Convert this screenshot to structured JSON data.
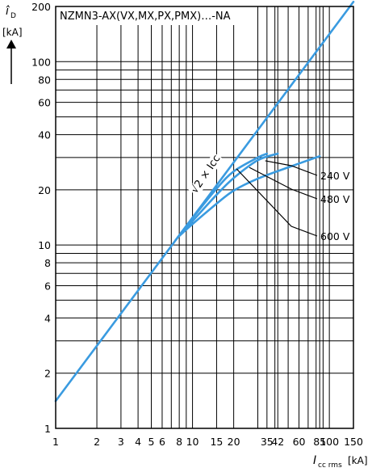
{
  "chart_data": {
    "type": "line",
    "title": "NZMN3-AX(VX,MX,PX,PMX)…-NA",
    "ylabel": {
      "symbol": "î",
      "sub": "D",
      "unit": "[kA]"
    },
    "xlabel": {
      "symbol": "I",
      "sub": "cc rms",
      "unit": "[kA]"
    },
    "xscale": "log",
    "yscale": "log",
    "xlim": [
      1,
      150
    ],
    "ylim": [
      1,
      200
    ],
    "grid": true,
    "x_ticks": [
      1,
      2,
      3,
      4,
      5,
      6,
      8,
      10,
      15,
      20,
      35,
      42,
      60,
      85,
      100,
      150
    ],
    "x_tick_labels": [
      "1",
      "2",
      "3",
      "4",
      "5",
      "6",
      "8",
      "10",
      "15",
      "20",
      "35",
      "42",
      "60",
      "85",
      "100",
      "150"
    ],
    "y_ticks": [
      1,
      2,
      4,
      6,
      8,
      10,
      20,
      40,
      60,
      80,
      100,
      200
    ],
    "y_tick_labels": [
      "1",
      "2",
      "4",
      "6",
      "8",
      "10",
      "20",
      "40",
      "60",
      "80",
      "100",
      "200"
    ],
    "x_grid": [
      1,
      2,
      3,
      4,
      5,
      6,
      7,
      8,
      9,
      10,
      15,
      20,
      30,
      35,
      40,
      42,
      50,
      60,
      70,
      80,
      85,
      90,
      100,
      150
    ],
    "y_grid": [
      1,
      2,
      3,
      4,
      5,
      6,
      7,
      8,
      9,
      10,
      20,
      30,
      40,
      50,
      60,
      70,
      80,
      90,
      100,
      200
    ],
    "series": [
      {
        "name": "√2 × Icc",
        "x": [
          1,
          150
        ],
        "y": [
          1.41,
          212
        ]
      },
      {
        "name": "240 V",
        "x": [
          7.5,
          10,
          15,
          20,
          30,
          35
        ],
        "y": [
          10.6,
          14.0,
          20.3,
          25.2,
          30.0,
          31.5
        ]
      },
      {
        "name": "480 V",
        "x": [
          7.8,
          10,
          15,
          20,
          30,
          42
        ],
        "y": [
          11.0,
          13.5,
          18.8,
          23.2,
          29.0,
          31.5
        ]
      },
      {
        "name": "600 V",
        "x": [
          8,
          10,
          15,
          20,
          30,
          50,
          85
        ],
        "y": [
          11.2,
          13.0,
          16.8,
          19.8,
          23.0,
          26.5,
          30.5
        ]
      }
    ],
    "line_color": "#3a9be0",
    "annotations": {
      "sqrt2_label": "√2 × Icc",
      "v240": "240 V",
      "v480": "480 V",
      "v600": "600 V"
    }
  }
}
